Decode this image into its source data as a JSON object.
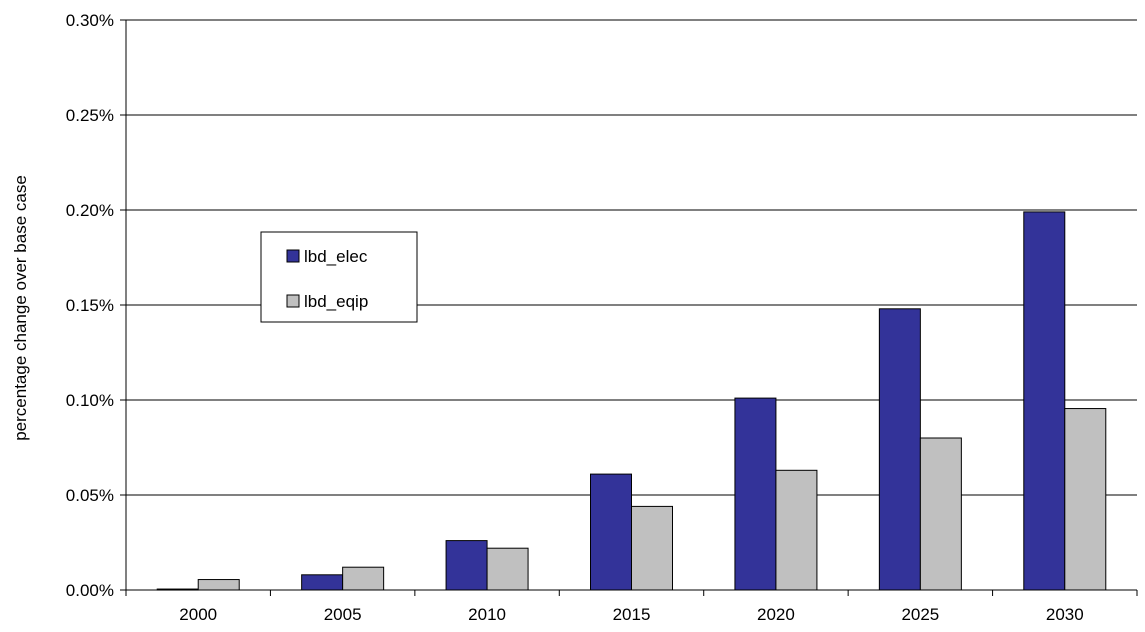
{
  "chart_data": {
    "type": "bar",
    "title": "",
    "xlabel": "",
    "ylabel": "percentage change over base case",
    "categories": [
      "2000",
      "2005",
      "2010",
      "2015",
      "2020",
      "2025",
      "2030"
    ],
    "ylim": [
      0,
      0.3
    ],
    "yticks": [
      0.0,
      0.05,
      0.1,
      0.15,
      0.2,
      0.25,
      0.3
    ],
    "ytick_labels": [
      "0.00%",
      "0.05%",
      "0.10%",
      "0.15%",
      "0.20%",
      "0.25%",
      "0.30%"
    ],
    "grid": "horizontal",
    "legend_position": "upper-left inside plot",
    "series": [
      {
        "name": "lbd_elec",
        "color": "#333399",
        "values": [
          0.0005,
          0.008,
          0.026,
          0.061,
          0.101,
          0.148,
          0.199
        ]
      },
      {
        "name": "lbd_eqip",
        "color": "#C0C0C0",
        "values": [
          0.0055,
          0.012,
          0.022,
          0.044,
          0.063,
          0.08,
          0.0955
        ]
      }
    ]
  }
}
